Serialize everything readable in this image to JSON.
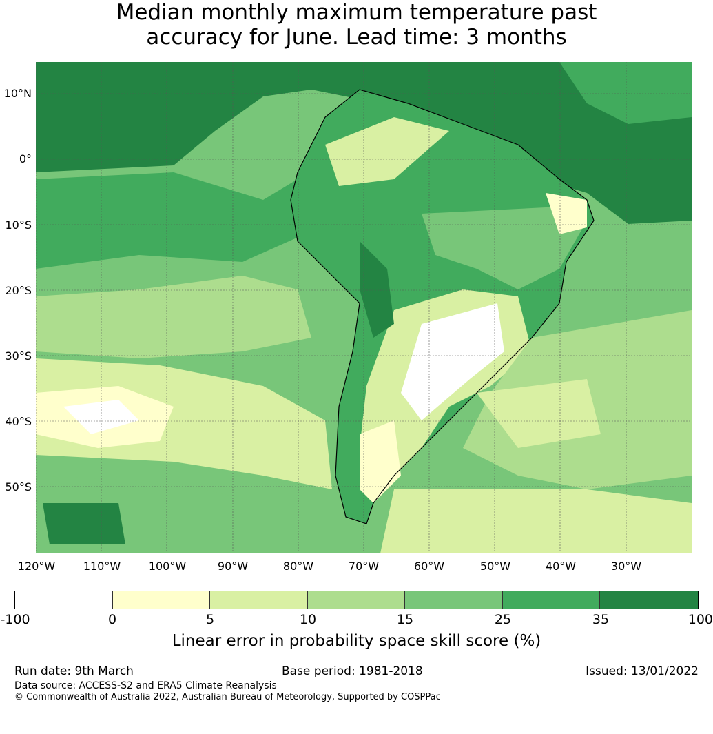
{
  "title": {
    "line1": "Median monthly maximum temperature past",
    "line2": "accuracy for June. Lead time: 3 months"
  },
  "map": {
    "lat_labels": [
      "10°N",
      "0°",
      "10°S",
      "20°S",
      "30°S",
      "40°S",
      "50°S"
    ],
    "lon_labels": [
      "120°W",
      "110°W",
      "100°W",
      "90°W",
      "80°W",
      "70°W",
      "60°W",
      "50°W",
      "40°W",
      "30°W"
    ]
  },
  "colorbar": {
    "label": "Linear error in probability space skill score (%)",
    "ticks": [
      "-100",
      "0",
      "5",
      "10",
      "15",
      "25",
      "35",
      "100"
    ],
    "bins": [
      {
        "range": "-100 to 0",
        "color": "#ffffff"
      },
      {
        "range": "0 to 5",
        "color": "#ffffcc"
      },
      {
        "range": "5 to 10",
        "color": "#d9f0a3"
      },
      {
        "range": "10 to 15",
        "color": "#addd8e"
      },
      {
        "range": "15 to 25",
        "color": "#78c679"
      },
      {
        "range": "25 to 35",
        "color": "#41ab5d"
      },
      {
        "range": "35 to 100",
        "color": "#238443"
      }
    ]
  },
  "footer": {
    "run_date": "Run date: 9th March",
    "base_period": "Base period: 1981-2018",
    "issued": "Issued: 13/01/2022",
    "data_source": "Data source: ACCESS-S2 and ERA5 Climate Reanalysis",
    "copyright": "© Commonwealth of Australia 2022, Australian Bureau of Meteorology, Supported by COSPPac"
  }
}
